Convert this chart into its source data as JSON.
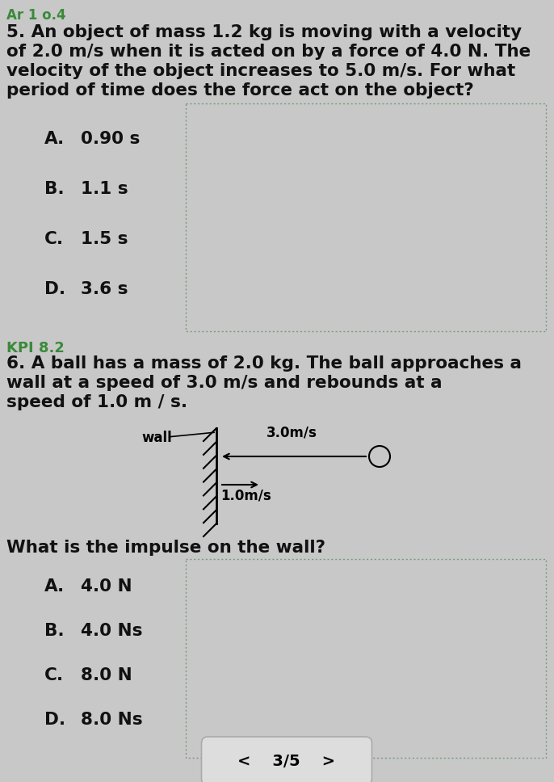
{
  "bg_color": "#c8c8c8",
  "header_text": "Ar 1 o.4",
  "header_color": "#3a8a3a",
  "q5_text_lines": [
    "5. An object of mass 1.2 kg is moving with a velocity",
    "of 2.0 m/s when it is acted on by a force of 4.0 N. The",
    "velocity of the object increases to 5.0 m/s. For what",
    "period of time does the force act on the object?"
  ],
  "q5_options": [
    [
      "A.",
      "0.90 s"
    ],
    [
      "B.",
      "1.1 s"
    ],
    [
      "C.",
      "1.5 s"
    ],
    [
      "D.",
      "3.6 s"
    ]
  ],
  "kpi_text": "KPI 8.2",
  "kpi_color": "#3a8a3a",
  "q6_text_lines": [
    "6. A ball has a mass of 2.0 kg. The ball approaches a",
    "wall at a speed of 3.0 m/s and rebounds at a",
    "speed of 1.0 m / s."
  ],
  "q6_options": [
    [
      "A.",
      "4.0 N"
    ],
    [
      "B.",
      "4.0 Ns"
    ],
    [
      "C.",
      "8.0 N"
    ],
    [
      "D.",
      "8.0 Ns"
    ]
  ],
  "q6_subq": "What is the impulse on the wall?",
  "nav_text": "<    3/5    >",
  "box_border_color": "#7a9a7a",
  "text_color": "#111111",
  "font_size_body": 15.5,
  "font_size_options": 15.5,
  "font_size_header": 12,
  "wall_label": "wall",
  "speed1_label": "3.0m/s",
  "speed2_label": "1.0m/s"
}
